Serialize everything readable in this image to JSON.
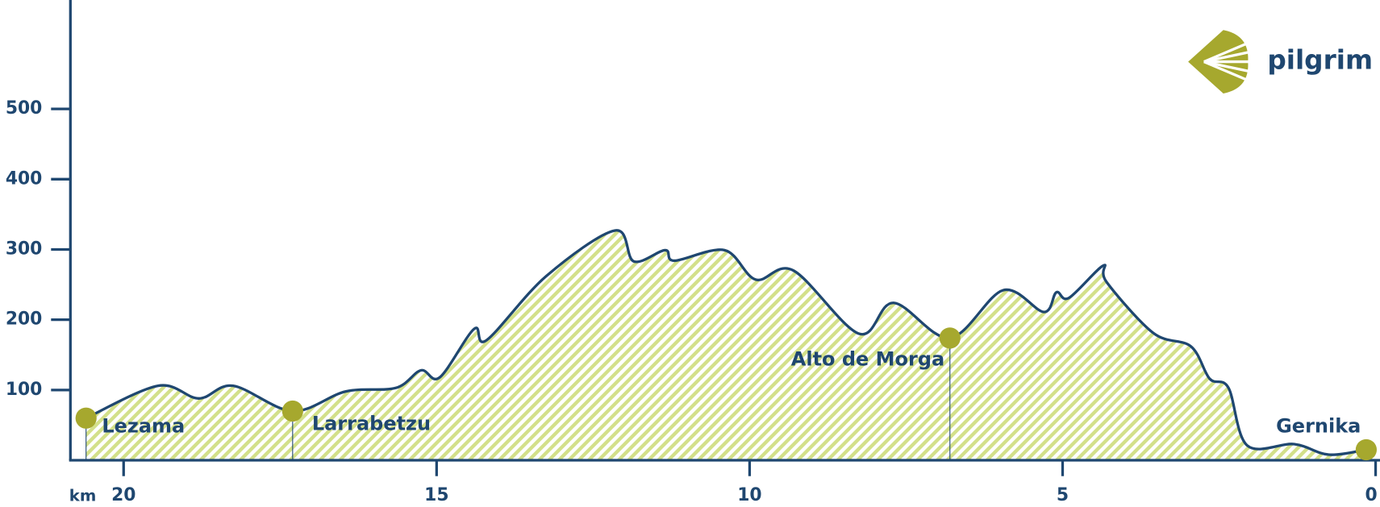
{
  "chart_data": {
    "type": "area",
    "brand": "pilgrim",
    "x_label": "km",
    "color": "#1f4770",
    "fill_color": "#d3e08a",
    "marker_color": "#a6a82e",
    "xlim": [
      20.85,
      0
    ],
    "xticks": [
      20,
      15,
      10,
      5,
      0
    ],
    "ylim": [
      0,
      655
    ],
    "yticks": [
      100,
      200,
      300,
      400,
      500
    ],
    "x": [
      20.6,
      19.45,
      18.8,
      18.25,
      17.3,
      16.45,
      15.65,
      15.25,
      14.95,
      14.4,
      14.2,
      13.25,
      12.15,
      11.85,
      11.35,
      11.2,
      10.4,
      9.9,
      9.3,
      8.25,
      7.7,
      6.8,
      5.95,
      5.3,
      5.1,
      4.9,
      4.35,
      4.3,
      3.55,
      2.95,
      2.65,
      2.35,
      2.05,
      1.3,
      0.75,
      0.15
    ],
    "values": [
      60,
      106,
      88,
      106,
      70,
      98,
      103,
      128,
      118,
      187,
      171,
      262,
      327,
      283,
      299,
      284,
      299,
      257,
      270,
      180,
      224,
      174,
      242,
      211,
      239,
      231,
      277,
      254,
      181,
      162,
      116,
      103,
      21,
      23,
      8,
      15
    ],
    "stops": [
      {
        "name": "Lezama",
        "x": 20.6,
        "y": 60
      },
      {
        "name": "Larrabetzu",
        "x": 17.3,
        "y": 70
      },
      {
        "name": "Alto de Morga",
        "x": 6.8,
        "y": 174
      },
      {
        "name": "Gernika",
        "x": 0.15,
        "y": 15
      }
    ]
  }
}
